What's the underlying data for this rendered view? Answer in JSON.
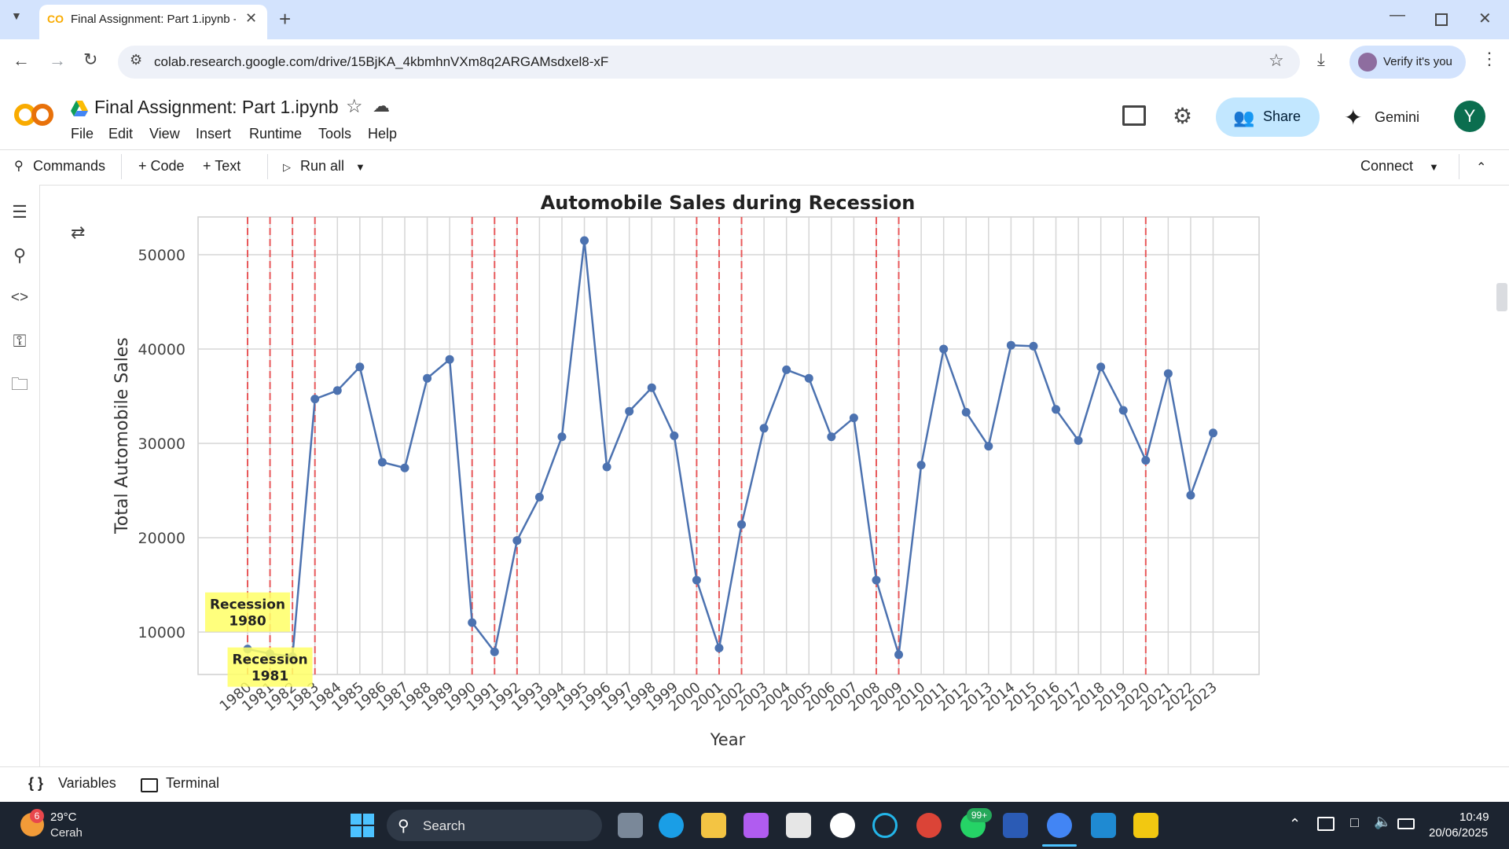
{
  "browser": {
    "tab_title": "Final Assignment: Part 1.ipynb -",
    "url": "colab.research.google.com/drive/15BjKA_4kbmhnVXm8q2ARGAMsdxel8-xF",
    "verify_label": "Verify it's you"
  },
  "colab": {
    "notebook_title": "Final Assignment: Part 1.ipynb",
    "menu": [
      "File",
      "Edit",
      "View",
      "Insert",
      "Runtime",
      "Tools",
      "Help"
    ],
    "share_label": "Share",
    "gemini_label": "Gemini",
    "avatar_initial": "Y",
    "toolbar": {
      "commands": "Commands",
      "code": "+ Code",
      "text": "+ Text",
      "run_all": "Run all",
      "connect": "Connect"
    },
    "bottom": {
      "variables": "Variables",
      "terminal": "Terminal"
    }
  },
  "taskbar": {
    "temperature": "29°C",
    "condition": "Cerah",
    "weather_badge": "6",
    "search": "Search",
    "whatsapp_badge": "99+",
    "time": "10:49",
    "date": "20/06/2025"
  },
  "chart_data": {
    "type": "line",
    "title": "Automobile Sales during Recession",
    "xlabel": "Year",
    "ylabel": "Total Automobile Sales",
    "ylim": [
      5500,
      54000
    ],
    "yticks": [
      10000,
      20000,
      30000,
      40000,
      50000
    ],
    "grid": true,
    "x": [
      1980,
      1981,
      1982,
      1983,
      1984,
      1985,
      1986,
      1987,
      1988,
      1989,
      1990,
      1991,
      1992,
      1993,
      1994,
      1995,
      1996,
      1997,
      1998,
      1999,
      2000,
      2001,
      2002,
      2003,
      2004,
      2005,
      2006,
      2007,
      2008,
      2009,
      2010,
      2011,
      2012,
      2013,
      2014,
      2015,
      2016,
      2017,
      2018,
      2019,
      2020,
      2021,
      2022,
      2023
    ],
    "y": [
      8200,
      7700,
      7400,
      34700,
      35600,
      38100,
      28000,
      27400,
      36900,
      38900,
      11000,
      7900,
      19700,
      24300,
      30700,
      51500,
      27500,
      33400,
      35900,
      30800,
      15500,
      8300,
      21400,
      31600,
      37800,
      36900,
      30700,
      32700,
      15500,
      7600,
      27700,
      40000,
      33300,
      29700,
      40400,
      40300,
      33600,
      30300,
      38100,
      33500,
      28200,
      37400,
      24500,
      31100
    ],
    "recession_years": [
      1980,
      1981,
      1982,
      1983,
      1990,
      1991,
      1992,
      2000,
      2001,
      2002,
      2008,
      2009,
      2020
    ],
    "annotations": [
      {
        "text": "Recession\n1980",
        "line1": "Recession",
        "line2": "1980",
        "x": 1980,
        "y": 8200
      },
      {
        "text": "Recession\n1981",
        "line1": "Recession",
        "line2": "1981",
        "x": 1981,
        "y": 7700
      }
    ],
    "line_color": "#4c72b0",
    "recession_color": "#e8595b",
    "annotation_color": "#ffff66"
  }
}
